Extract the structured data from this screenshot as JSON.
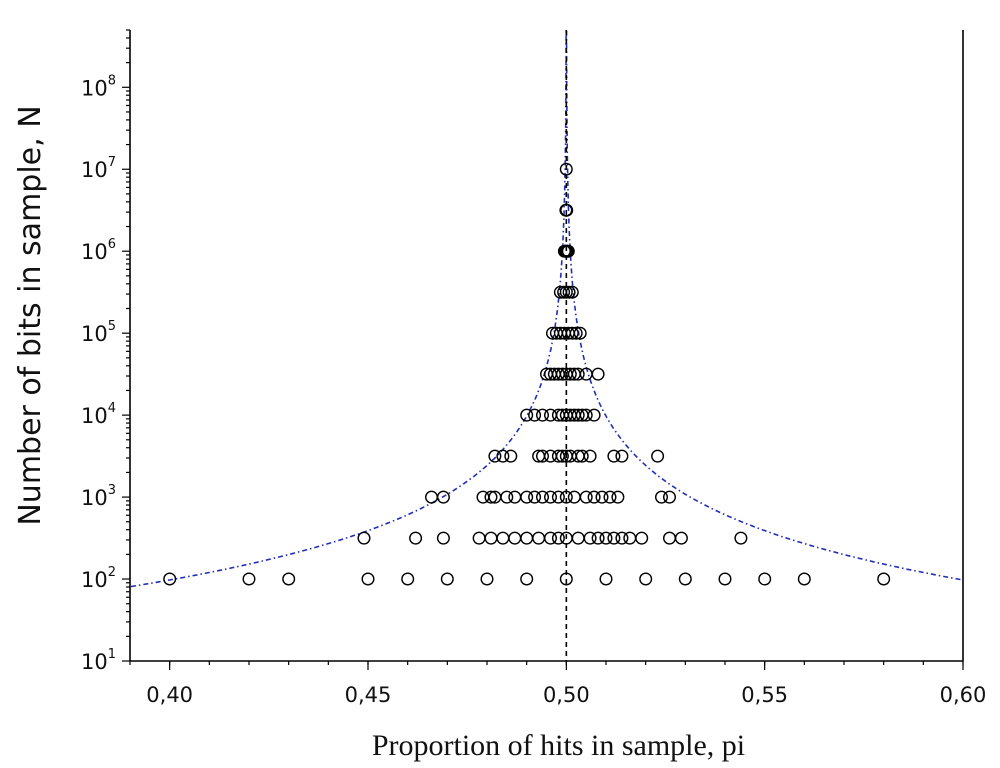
{
  "chart_data": {
    "type": "scatter",
    "xlabel": "Proportion of hits in sample, pi",
    "ylabel": "Number of bits in sample, N",
    "xlim": [
      0.39,
      0.6
    ],
    "ylim": [
      10,
      500000000
    ],
    "y_scale": "log",
    "x_ticks": [
      0.4,
      0.45,
      0.5,
      0.55,
      0.6
    ],
    "x_tick_labels": [
      "0,40",
      "0,45",
      "0,50",
      "0,55",
      "0,60"
    ],
    "y_ticks": [
      {
        "value": 10,
        "base": "10",
        "exp": "1"
      },
      {
        "value": 100,
        "base": "10",
        "exp": "2"
      },
      {
        "value": 1000,
        "base": "10",
        "exp": "3"
      },
      {
        "value": 10000,
        "base": "10",
        "exp": "4"
      },
      {
        "value": 100000,
        "base": "10",
        "exp": "5"
      },
      {
        "value": 1000000,
        "base": "10",
        "exp": "6"
      },
      {
        "value": 10000000,
        "base": "10",
        "exp": "7"
      },
      {
        "value": 100000000,
        "base": "10",
        "exp": "8"
      }
    ],
    "grid": false,
    "legend": "none",
    "reference_line": {
      "x": 0.5,
      "style": "dashed",
      "color": "#000000"
    },
    "envelope": {
      "style": "dash-dot",
      "color": "#1f2fb8"
    },
    "points": [
      {
        "N": 100,
        "pi": [
          0.4,
          0.42,
          0.43,
          0.45,
          0.46,
          0.47,
          0.48,
          0.49,
          0.5,
          0.51,
          0.52,
          0.53,
          0.54,
          0.55,
          0.56,
          0.58
        ]
      },
      {
        "N": 316,
        "pi": [
          0.449,
          0.462,
          0.469,
          0.478,
          0.481,
          0.484,
          0.487,
          0.49,
          0.493,
          0.496,
          0.498,
          0.5,
          0.503,
          0.506,
          0.508,
          0.51,
          0.512,
          0.514,
          0.516,
          0.519,
          0.526,
          0.529,
          0.544
        ]
      },
      {
        "N": 1000,
        "pi": [
          0.466,
          0.469,
          0.479,
          0.481,
          0.482,
          0.485,
          0.487,
          0.49,
          0.492,
          0.494,
          0.496,
          0.498,
          0.5,
          0.502,
          0.505,
          0.507,
          0.509,
          0.511,
          0.513,
          0.524,
          0.526
        ]
      },
      {
        "N": 3162,
        "pi": [
          0.482,
          0.484,
          0.486,
          0.493,
          0.494,
          0.496,
          0.498,
          0.499,
          0.5,
          0.501,
          0.503,
          0.504,
          0.506,
          0.512,
          0.514,
          0.523
        ]
      },
      {
        "N": 10000,
        "pi": [
          0.49,
          0.492,
          0.494,
          0.496,
          0.498,
          0.499,
          0.5,
          0.501,
          0.502,
          0.503,
          0.504,
          0.505,
          0.507
        ]
      },
      {
        "N": 31623,
        "pi": [
          0.495,
          0.496,
          0.497,
          0.498,
          0.499,
          0.5,
          0.501,
          0.502,
          0.503,
          0.505,
          0.508
        ]
      },
      {
        "N": 100000,
        "pi": [
          0.4965,
          0.4975,
          0.4985,
          0.4995,
          0.5005,
          0.5015,
          0.5025,
          0.5035
        ]
      },
      {
        "N": 316228,
        "pi": [
          0.4985,
          0.4993,
          0.5,
          0.5007,
          0.5015
        ]
      },
      {
        "N": 1000000,
        "pi": [
          0.4995,
          0.4998,
          0.5,
          0.5002,
          0.5005
        ]
      },
      {
        "N": 3162278,
        "pi": [
          0.4999,
          0.5,
          0.5001
        ]
      },
      {
        "N": 10000000,
        "pi": [
          0.5
        ]
      }
    ]
  }
}
